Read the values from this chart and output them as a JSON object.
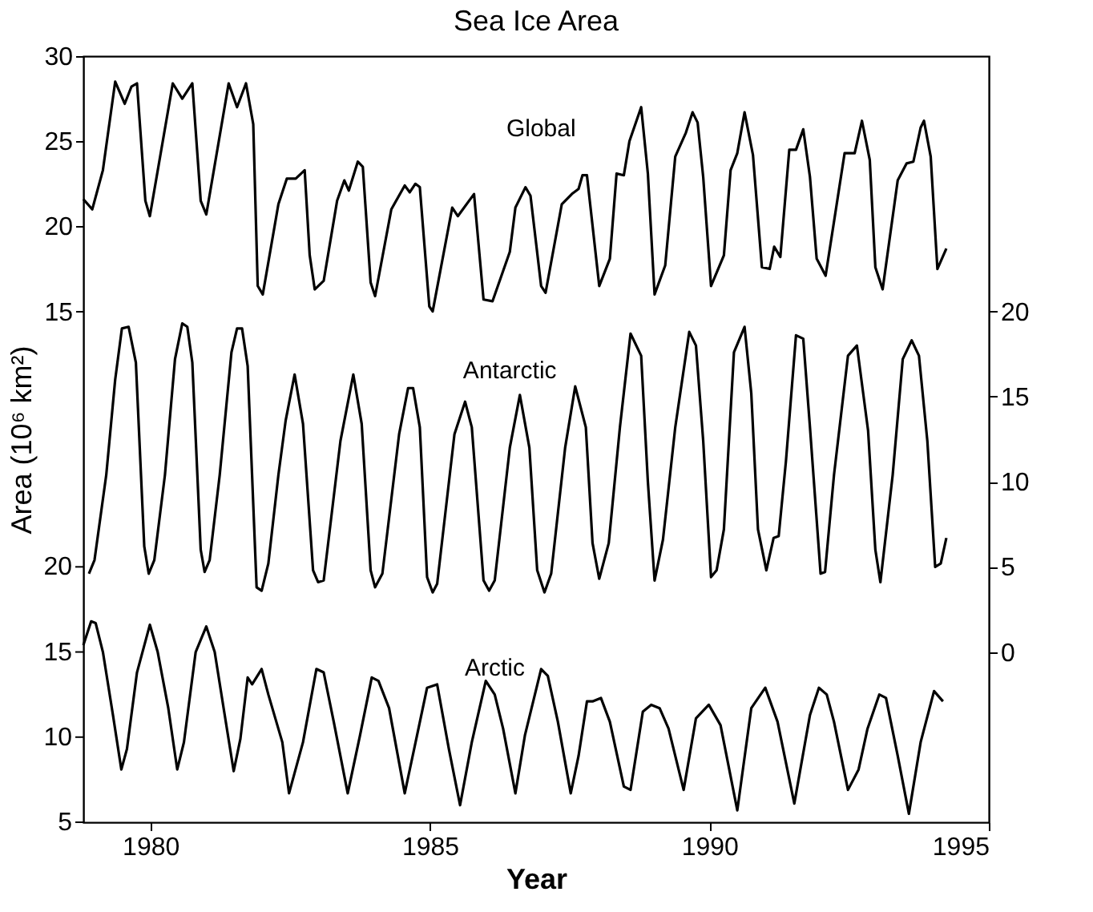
{
  "chart_data": {
    "type": "line",
    "title": "Sea Ice Area",
    "xlabel": "Year",
    "ylabel": "Area (10⁶ km²)",
    "xlim": [
      1978.8,
      1995
    ],
    "xticks": [
      1980,
      1985,
      1990,
      1995
    ],
    "ylim": [
      -15,
      30
    ],
    "yticks": [
      15,
      20,
      25,
      30
    ],
    "y2lim": [
      -10,
      35
    ],
    "y2ticks": [
      0,
      5,
      10,
      15,
      20
    ],
    "y3lim": [
      5,
      50
    ],
    "y3ticks": [
      5,
      10,
      15,
      20
    ],
    "grid": false,
    "legend": false,
    "series": [
      {
        "name": "Global",
        "color": "#000000",
        "axis": "y",
        "x": [
          1978.8,
          1978.96,
          1979.15,
          1979.37,
          1979.54,
          1979.66,
          1979.76,
          1979.91,
          1979.99,
          1980.4,
          1980.57,
          1980.75,
          1980.9,
          1981.0,
          1981.4,
          1981.55,
          1981.71,
          1981.84,
          1981.92,
          1982.01,
          1982.29,
          1982.44,
          1982.6,
          1982.76,
          1982.85,
          1982.94,
          1983.1,
          1983.34,
          1983.47,
          1983.55,
          1983.71,
          1983.8,
          1983.94,
          1984.02,
          1984.31,
          1984.55,
          1984.64,
          1984.74,
          1984.82,
          1984.99,
          1985.05,
          1985.4,
          1985.5,
          1985.79,
          1985.96,
          1986.12,
          1986.43,
          1986.53,
          1986.71,
          1986.8,
          1986.99,
          1987.07,
          1987.36,
          1987.54,
          1987.66,
          1987.73,
          1987.81,
          1988.03,
          1988.22,
          1988.34,
          1988.47,
          1988.57,
          1988.78,
          1988.9,
          1989.02,
          1989.21,
          1989.39,
          1989.58,
          1989.7,
          1989.79,
          1989.89,
          1990.03,
          1990.26,
          1990.38,
          1990.5,
          1990.63,
          1990.78,
          1990.94,
          1991.08,
          1991.16,
          1991.27,
          1991.43,
          1991.55,
          1991.68,
          1991.8,
          1991.92,
          1992.08,
          1992.42,
          1992.6,
          1992.73,
          1992.87,
          1992.97,
          1993.1,
          1993.37,
          1993.53,
          1993.65,
          1993.78,
          1993.84,
          1993.96,
          1994.08,
          1994.24
        ],
        "values": [
          21.6,
          21.0,
          23.3,
          28.5,
          27.2,
          28.2,
          28.4,
          21.5,
          20.6,
          28.4,
          27.5,
          28.4,
          21.5,
          20.7,
          28.4,
          27.0,
          28.4,
          26.0,
          16.5,
          16.0,
          21.3,
          22.8,
          22.8,
          23.3,
          18.3,
          16.3,
          16.8,
          21.5,
          22.7,
          22.1,
          23.8,
          23.5,
          16.7,
          15.9,
          21.0,
          22.4,
          22.0,
          22.5,
          22.3,
          15.3,
          15.0,
          21.1,
          20.6,
          21.9,
          15.7,
          15.6,
          18.5,
          21.1,
          22.3,
          21.8,
          16.5,
          16.1,
          21.3,
          21.9,
          22.2,
          23.0,
          23.0,
          16.5,
          18.1,
          23.1,
          23.0,
          25.0,
          27.0,
          23.1,
          16.0,
          17.7,
          24.1,
          25.5,
          26.7,
          26.1,
          22.9,
          16.5,
          18.3,
          23.3,
          24.3,
          26.7,
          24.2,
          17.6,
          17.5,
          18.8,
          18.2,
          24.5,
          24.5,
          25.7,
          22.9,
          18.1,
          17.1,
          24.3,
          24.3,
          26.2,
          23.9,
          17.6,
          16.3,
          22.7,
          23.7,
          23.8,
          25.8,
          26.2,
          24.1,
          17.5,
          18.7
        ]
      },
      {
        "name": "Antarctic",
        "color": "#000000",
        "axis": "y2",
        "x": [
          1978.9,
          1979.0,
          1979.21,
          1979.37,
          1979.49,
          1979.61,
          1979.74,
          1979.89,
          1979.97,
          1980.07,
          1980.26,
          1980.44,
          1980.57,
          1980.66,
          1980.75,
          1980.9,
          1980.97,
          1981.06,
          1981.24,
          1981.45,
          1981.55,
          1981.64,
          1981.74,
          1981.9,
          1981.99,
          1982.11,
          1982.29,
          1982.42,
          1982.58,
          1982.73,
          1982.91,
          1983.0,
          1983.1,
          1983.4,
          1983.63,
          1983.78,
          1983.94,
          1984.02,
          1984.15,
          1984.45,
          1984.61,
          1984.7,
          1984.82,
          1984.95,
          1985.05,
          1985.13,
          1985.44,
          1985.63,
          1985.75,
          1985.96,
          1986.06,
          1986.16,
          1986.43,
          1986.61,
          1986.78,
          1986.92,
          1987.05,
          1987.17,
          1987.42,
          1987.6,
          1987.79,
          1987.91,
          1988.03,
          1988.2,
          1988.4,
          1988.59,
          1988.78,
          1988.9,
          1989.02,
          1989.17,
          1989.39,
          1989.64,
          1989.76,
          1989.89,
          1990.03,
          1990.13,
          1990.26,
          1990.44,
          1990.63,
          1990.75,
          1990.87,
          1991.02,
          1991.15,
          1991.24,
          1991.37,
          1991.55,
          1991.68,
          1991.8,
          1991.99,
          1992.07,
          1992.23,
          1992.48,
          1992.64,
          1992.84,
          1992.97,
          1993.06,
          1993.28,
          1993.46,
          1993.62,
          1993.75,
          1993.9,
          1994.04,
          1994.14,
          1994.24
        ],
        "values": [
          4.6,
          5.4,
          10.4,
          16.0,
          19.0,
          19.1,
          17.0,
          6.2,
          4.6,
          5.4,
          10.4,
          17.2,
          19.3,
          19.1,
          17.0,
          6.0,
          4.7,
          5.4,
          10.4,
          17.6,
          19.0,
          19.0,
          16.8,
          3.8,
          3.6,
          5.2,
          10.4,
          13.6,
          16.3,
          13.4,
          4.8,
          4.1,
          4.2,
          12.4,
          16.3,
          13.4,
          4.8,
          3.8,
          4.6,
          12.8,
          15.5,
          15.5,
          13.2,
          4.4,
          3.5,
          4.0,
          12.8,
          14.7,
          13.2,
          4.2,
          3.6,
          4.2,
          12.0,
          15.1,
          12.0,
          4.8,
          3.5,
          4.6,
          12.0,
          15.6,
          13.2,
          6.4,
          4.3,
          6.4,
          13.2,
          18.7,
          17.4,
          10.0,
          4.2,
          6.6,
          13.2,
          18.8,
          18.0,
          12.4,
          4.4,
          4.8,
          7.2,
          17.6,
          19.1,
          15.2,
          7.2,
          4.8,
          6.7,
          6.8,
          11.2,
          18.6,
          18.4,
          13.2,
          4.6,
          4.7,
          10.4,
          17.4,
          18.0,
          13.0,
          6.0,
          4.1,
          10.4,
          17.2,
          18.3,
          17.4,
          12.4,
          5.0,
          5.2,
          6.7
        ]
      },
      {
        "name": "Arctic",
        "color": "#000000",
        "axis": "y3",
        "x": [
          1978.8,
          1978.94,
          1979.02,
          1979.15,
          1979.33,
          1979.48,
          1979.58,
          1979.76,
          1979.99,
          1980.13,
          1980.32,
          1980.48,
          1980.6,
          1980.81,
          1981.0,
          1981.15,
          1981.31,
          1981.49,
          1981.61,
          1981.74,
          1981.82,
          1981.99,
          1982.11,
          1982.36,
          1982.48,
          1982.73,
          1982.97,
          1983.1,
          1983.28,
          1983.53,
          1983.75,
          1983.96,
          1984.08,
          1984.27,
          1984.55,
          1984.77,
          1984.95,
          1985.13,
          1985.34,
          1985.54,
          1985.75,
          1986.0,
          1986.16,
          1986.31,
          1986.53,
          1986.7,
          1986.99,
          1987.11,
          1987.29,
          1987.52,
          1987.66,
          1987.81,
          1987.91,
          1988.06,
          1988.22,
          1988.47,
          1988.59,
          1988.81,
          1988.96,
          1989.11,
          1989.27,
          1989.54,
          1989.76,
          1989.99,
          1990.2,
          1990.5,
          1990.75,
          1991.0,
          1991.22,
          1991.52,
          1991.8,
          1991.96,
          1992.1,
          1992.23,
          1992.48,
          1992.67,
          1992.83,
          1993.04,
          1993.16,
          1993.37,
          1993.57,
          1993.78,
          1994.02,
          1994.18
        ],
        "values": [
          15.4,
          16.8,
          16.7,
          15.0,
          11.3,
          8.1,
          9.3,
          13.8,
          16.6,
          15.0,
          11.7,
          8.1,
          9.7,
          15.0,
          16.5,
          15.0,
          11.7,
          8.0,
          9.9,
          13.5,
          13.1,
          14.0,
          12.5,
          9.7,
          6.7,
          9.7,
          14.0,
          13.8,
          10.9,
          6.7,
          10.1,
          13.5,
          13.3,
          11.7,
          6.7,
          10.1,
          12.9,
          13.1,
          9.3,
          6.0,
          9.7,
          13.3,
          12.5,
          10.5,
          6.7,
          10.1,
          14.0,
          13.6,
          10.9,
          6.7,
          8.9,
          12.1,
          12.1,
          12.3,
          10.9,
          7.1,
          6.9,
          11.5,
          11.9,
          11.7,
          10.5,
          6.9,
          11.1,
          11.9,
          10.7,
          5.7,
          11.7,
          12.9,
          10.9,
          6.1,
          11.3,
          12.9,
          12.5,
          10.9,
          6.9,
          8.1,
          10.5,
          12.5,
          12.3,
          8.9,
          5.5,
          9.7,
          12.7,
          12.1
        ]
      }
    ]
  }
}
